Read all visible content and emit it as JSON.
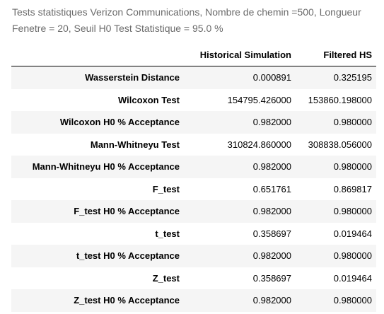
{
  "caption": "Tests statistiques Verizon Communications, Nombre de chemin =500, Longueur Fenetre = 20, Seuil H0 Test Statistique = 95.0 %",
  "table": {
    "columns": [
      "",
      "Historical Simulation",
      "Filtered HS"
    ],
    "rows": [
      {
        "label": "Wasserstein Distance",
        "values": [
          "0.000891",
          "0.325195"
        ]
      },
      {
        "label": "Wilcoxon Test",
        "values": [
          "154795.426000",
          "153860.198000"
        ]
      },
      {
        "label": "Wilcoxon H0 % Acceptance",
        "values": [
          "0.982000",
          "0.980000"
        ]
      },
      {
        "label": "Mann-Whitneyu Test",
        "values": [
          "310824.860000",
          "308838.056000"
        ]
      },
      {
        "label": "Mann-Whitneyu H0 % Acceptance",
        "values": [
          "0.982000",
          "0.980000"
        ]
      },
      {
        "label": "F_test",
        "values": [
          "0.651761",
          "0.869817"
        ]
      },
      {
        "label": "F_test H0 % Acceptance",
        "values": [
          "0.982000",
          "0.980000"
        ]
      },
      {
        "label": "t_test",
        "values": [
          "0.358697",
          "0.019464"
        ]
      },
      {
        "label": "t_test H0 % Acceptance",
        "values": [
          "0.982000",
          "0.980000"
        ]
      },
      {
        "label": "Z_test",
        "values": [
          "0.358697",
          "0.019464"
        ]
      },
      {
        "label": "Z_test H0 % Acceptance",
        "values": [
          "0.982000",
          "0.980000"
        ]
      }
    ]
  }
}
